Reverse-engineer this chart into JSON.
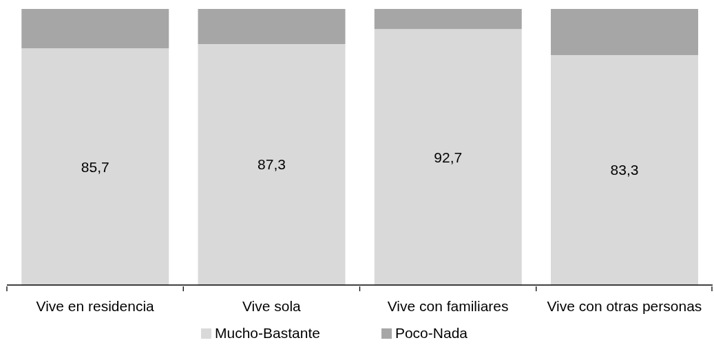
{
  "chart_data": {
    "type": "bar",
    "stacked": true,
    "categories": [
      "Vive en residencia",
      "Vive sola",
      "Vive con familiares",
      "Vive con otras personas"
    ],
    "series": [
      {
        "name": "Mucho-Bastante",
        "color": "#d9d9d9",
        "values": [
          85.7,
          87.3,
          92.7,
          83.3
        ],
        "value_labels": [
          "85,7",
          "87,3",
          "92,7",
          "83,3"
        ]
      },
      {
        "name": "Poco-Nada",
        "color": "#a6a6a6",
        "values": [
          14.3,
          12.7,
          7.3,
          16.7
        ]
      }
    ],
    "ylim": [
      0,
      100
    ],
    "tick_labels": "x",
    "legend": "bottom"
  }
}
